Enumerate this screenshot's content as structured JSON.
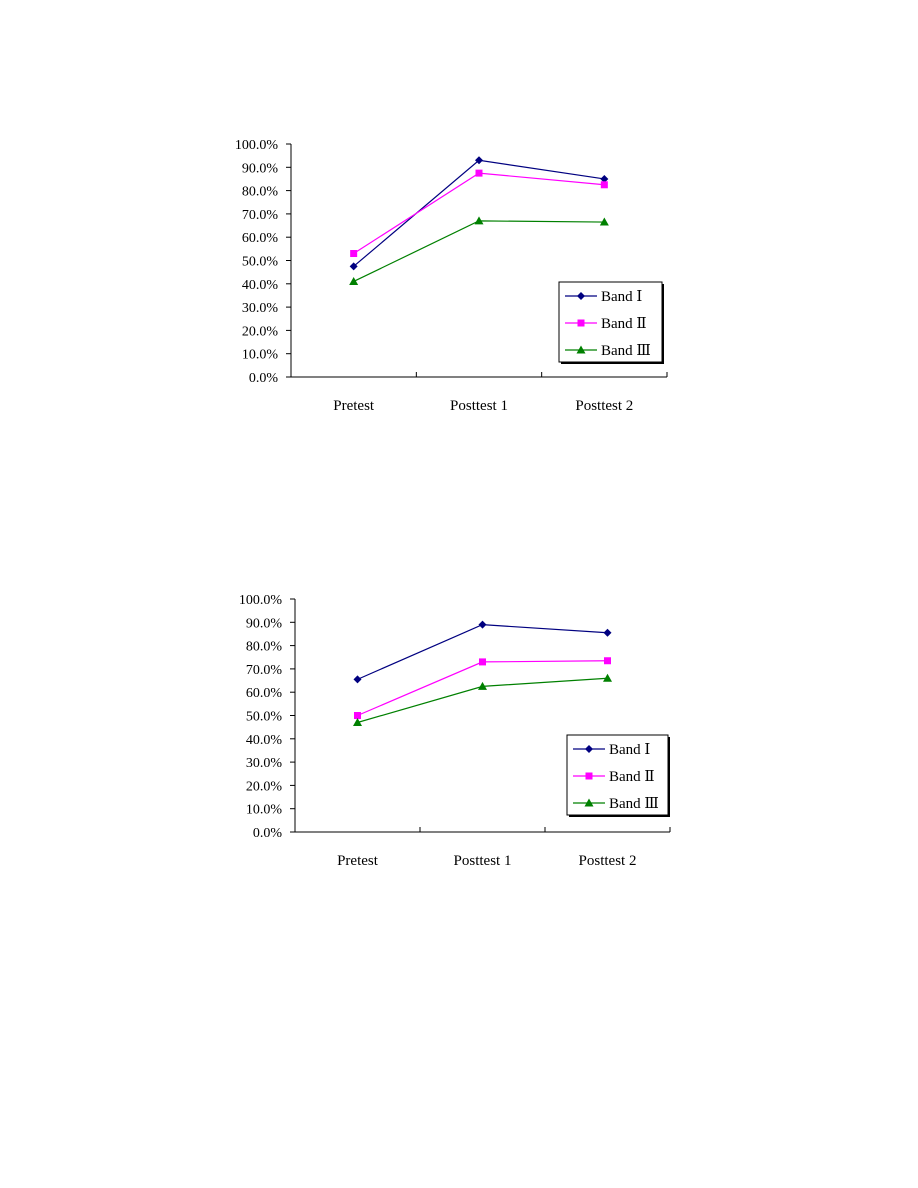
{
  "chart_data": [
    {
      "type": "line",
      "categories": [
        "Pretest",
        "Posttest 1",
        "Posttest 2"
      ],
      "y_ticks": [
        "0.0%",
        "10.0%",
        "20.0%",
        "30.0%",
        "40.0%",
        "50.0%",
        "60.0%",
        "70.0%",
        "80.0%",
        "90.0%",
        "100.0%"
      ],
      "ylim": [
        0,
        100
      ],
      "grid": false,
      "legend_position": "bottom-right",
      "series": [
        {
          "name": "Band Ⅰ",
          "color": "#000080",
          "marker": "diamond",
          "values": [
            47.5,
            93.0,
            85.0
          ]
        },
        {
          "name": "Band Ⅱ",
          "color": "#ff00ff",
          "marker": "square",
          "values": [
            53.0,
            87.5,
            82.5
          ]
        },
        {
          "name": "Band Ⅲ",
          "color": "#008000",
          "marker": "triangle",
          "values": [
            41.0,
            67.0,
            66.5
          ]
        }
      ]
    },
    {
      "type": "line",
      "categories": [
        "Pretest",
        "Posttest 1",
        "Posttest 2"
      ],
      "y_ticks": [
        "0.0%",
        "10.0%",
        "20.0%",
        "30.0%",
        "40.0%",
        "50.0%",
        "60.0%",
        "70.0%",
        "80.0%",
        "90.0%",
        "100.0%"
      ],
      "ylim": [
        0,
        100
      ],
      "grid": false,
      "legend_position": "bottom-right",
      "series": [
        {
          "name": "Band Ⅰ",
          "color": "#000080",
          "marker": "diamond",
          "values": [
            65.5,
            89.0,
            85.5
          ]
        },
        {
          "name": "Band Ⅱ",
          "color": "#ff00ff",
          "marker": "square",
          "values": [
            50.0,
            73.0,
            73.5
          ]
        },
        {
          "name": "Band Ⅲ",
          "color": "#008000",
          "marker": "triangle",
          "values": [
            47.0,
            62.5,
            66.0
          ]
        }
      ]
    }
  ]
}
